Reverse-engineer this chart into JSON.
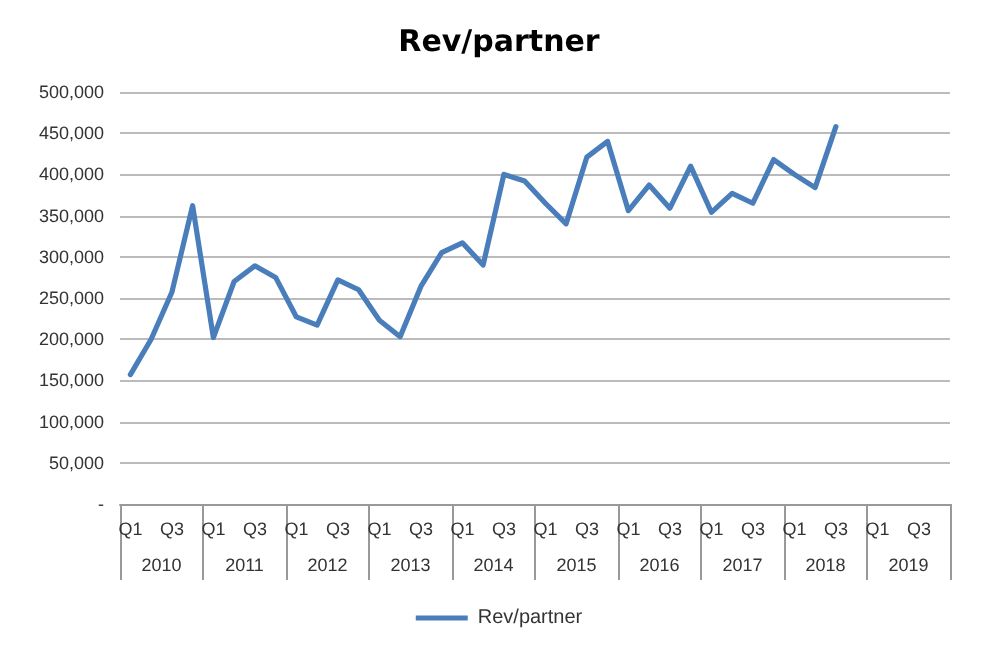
{
  "chart_data": {
    "type": "line",
    "title": "Rev/partner",
    "categories": [
      "Q1",
      null,
      "Q3",
      null,
      "Q1",
      null,
      "Q3",
      null,
      "Q1",
      null,
      "Q3",
      null,
      "Q1",
      null,
      "Q3",
      null,
      "Q1",
      null,
      "Q3",
      null,
      "Q1",
      null,
      "Q3",
      null,
      "Q1",
      null,
      "Q3",
      null,
      "Q1",
      null,
      "Q3",
      null,
      "Q1",
      null,
      "Q3",
      null,
      "Q1",
      null,
      "Q3",
      null
    ],
    "annotations": [
      "2010",
      "2011",
      "2012",
      "2013",
      "2014",
      "2015",
      "2016",
      "2017",
      "2018",
      "2019"
    ],
    "series": [
      {
        "name": "Rev/partner",
        "color": "#4a7ebb",
        "values": [
          157000,
          200000,
          257000,
          362000,
          202000,
          270000,
          289000,
          275000,
          227000,
          217000,
          272000,
          260000,
          223000,
          203000,
          264000,
          305000,
          317000,
          290000,
          400000,
          392000,
          365000,
          340000,
          421000,
          440000,
          356000,
          387000,
          359000,
          410000,
          354000,
          377000,
          365000,
          418000,
          400000,
          384000,
          458000,
          null,
          null,
          null,
          null,
          null
        ]
      }
    ],
    "ylim": [
      0,
      500000
    ],
    "yticks": [
      {
        "value": 0,
        "label": "-"
      },
      {
        "value": 50000,
        "label": "50,000"
      },
      {
        "value": 100000,
        "label": "100,000"
      },
      {
        "value": 150000,
        "label": "150,000"
      },
      {
        "value": 200000,
        "label": "200,000"
      },
      {
        "value": 250000,
        "label": "250,000"
      },
      {
        "value": 300000,
        "label": "300,000"
      },
      {
        "value": 350000,
        "label": "350,000"
      },
      {
        "value": 400000,
        "label": "400,000"
      },
      {
        "value": 450000,
        "label": "450,000"
      },
      {
        "value": 500000,
        "label": "500,000"
      }
    ],
    "grid": "y",
    "legend": "bottom",
    "marker": "none",
    "line_style": "solid"
  }
}
